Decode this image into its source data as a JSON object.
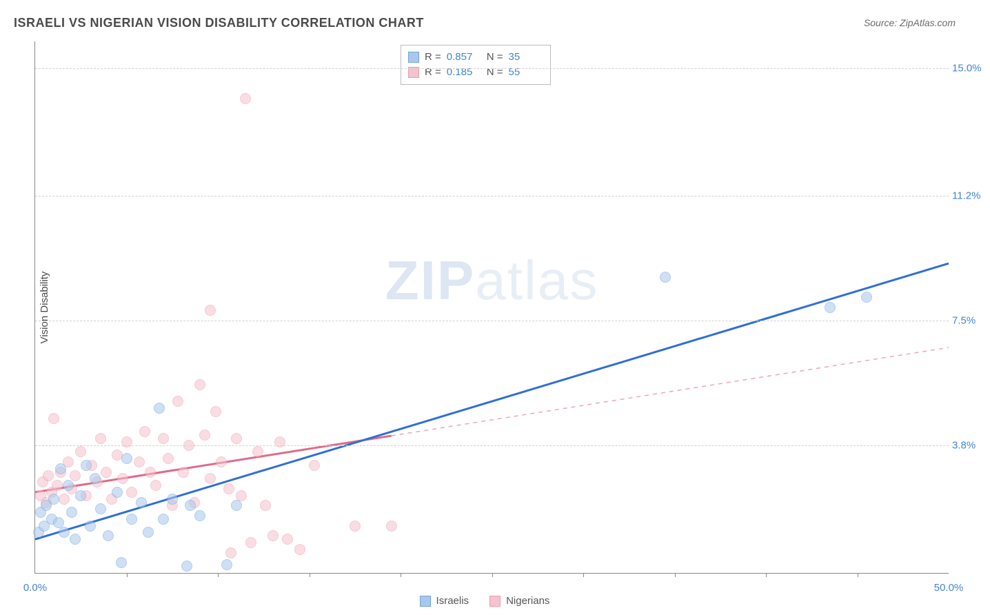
{
  "title": "ISRAELI VS NIGERIAN VISION DISABILITY CORRELATION CHART",
  "source": "Source: ZipAtlas.com",
  "ylabel": "Vision Disability",
  "watermark": {
    "bold": "ZIP",
    "rest": "atlas"
  },
  "axes": {
    "xlim": [
      0,
      50
    ],
    "ylim": [
      0,
      15.8
    ],
    "xlabels": [
      {
        "v": 0,
        "t": "0.0%"
      },
      {
        "v": 50,
        "t": "50.0%"
      }
    ],
    "xticks": [
      5,
      10,
      15,
      20,
      25,
      30,
      35,
      40,
      45
    ],
    "ygrid": [
      {
        "v": 3.8,
        "t": "3.8%"
      },
      {
        "v": 7.5,
        "t": "7.5%"
      },
      {
        "v": 11.2,
        "t": "11.2%"
      },
      {
        "v": 15.0,
        "t": "15.0%"
      }
    ]
  },
  "series": {
    "israelis": {
      "label": "Israelis",
      "fill": "#a9c8ec",
      "stroke": "#6fa5de",
      "marker_r": 8,
      "reg": {
        "r": "0.857",
        "n": "35",
        "line_color": "#2f6fd4",
        "width": 3,
        "x1": 0,
        "y1": 1.0,
        "x2": 50,
        "y2": 9.2,
        "solid_until": 50
      },
      "points": [
        [
          0.2,
          1.2
        ],
        [
          0.3,
          1.8
        ],
        [
          0.5,
          1.4
        ],
        [
          0.6,
          2.0
        ],
        [
          0.9,
          1.6
        ],
        [
          1.0,
          2.2
        ],
        [
          1.3,
          1.5
        ],
        [
          1.4,
          3.1
        ],
        [
          1.6,
          1.2
        ],
        [
          1.8,
          2.6
        ],
        [
          2.0,
          1.8
        ],
        [
          2.2,
          1.0
        ],
        [
          2.5,
          2.3
        ],
        [
          2.8,
          3.2
        ],
        [
          3.0,
          1.4
        ],
        [
          3.3,
          2.8
        ],
        [
          3.6,
          1.9
        ],
        [
          4.0,
          1.1
        ],
        [
          4.5,
          2.4
        ],
        [
          4.7,
          0.3
        ],
        [
          5.0,
          3.4
        ],
        [
          5.3,
          1.6
        ],
        [
          5.8,
          2.1
        ],
        [
          6.2,
          1.2
        ],
        [
          6.8,
          4.9
        ],
        [
          7.0,
          1.6
        ],
        [
          7.5,
          2.2
        ],
        [
          8.3,
          0.2
        ],
        [
          8.5,
          2.0
        ],
        [
          9.0,
          1.7
        ],
        [
          10.5,
          0.25
        ],
        [
          11.0,
          2.0
        ],
        [
          34.5,
          8.8
        ],
        [
          43.5,
          7.9
        ],
        [
          45.5,
          8.2
        ]
      ]
    },
    "nigerians": {
      "label": "Nigerians",
      "fill": "#f6c2cd",
      "stroke": "#ea9db0",
      "marker_r": 8,
      "reg": {
        "r": "0.185",
        "n": "55",
        "line_color": "#e06a88",
        "width": 3,
        "x1": 0,
        "y1": 2.4,
        "x2": 50,
        "y2": 6.7,
        "solid_until": 19.5
      },
      "points": [
        [
          0.3,
          2.3
        ],
        [
          0.4,
          2.7
        ],
        [
          0.6,
          2.1
        ],
        [
          0.7,
          2.9
        ],
        [
          0.9,
          2.4
        ],
        [
          1.0,
          4.6
        ],
        [
          1.2,
          2.6
        ],
        [
          1.4,
          3.0
        ],
        [
          1.6,
          2.2
        ],
        [
          1.8,
          3.3
        ],
        [
          2.0,
          2.5
        ],
        [
          2.2,
          2.9
        ],
        [
          2.5,
          3.6
        ],
        [
          2.8,
          2.3
        ],
        [
          3.1,
          3.2
        ],
        [
          3.4,
          2.7
        ],
        [
          3.6,
          4.0
        ],
        [
          3.9,
          3.0
        ],
        [
          4.2,
          2.2
        ],
        [
          4.5,
          3.5
        ],
        [
          4.8,
          2.8
        ],
        [
          5.0,
          3.9
        ],
        [
          5.3,
          2.4
        ],
        [
          5.7,
          3.3
        ],
        [
          6.0,
          4.2
        ],
        [
          6.3,
          3.0
        ],
        [
          6.6,
          2.6
        ],
        [
          7.0,
          4.0
        ],
        [
          7.3,
          3.4
        ],
        [
          7.5,
          2.0
        ],
        [
          7.8,
          5.1
        ],
        [
          8.1,
          3.0
        ],
        [
          8.4,
          3.8
        ],
        [
          8.7,
          2.1
        ],
        [
          9.0,
          5.6
        ],
        [
          9.3,
          4.1
        ],
        [
          9.6,
          2.8
        ],
        [
          9.6,
          7.8
        ],
        [
          9.9,
          4.8
        ],
        [
          10.2,
          3.3
        ],
        [
          10.6,
          2.5
        ],
        [
          10.7,
          0.6
        ],
        [
          11.0,
          4.0
        ],
        [
          11.3,
          2.3
        ],
        [
          11.5,
          14.1
        ],
        [
          11.8,
          0.9
        ],
        [
          12.2,
          3.6
        ],
        [
          12.6,
          2.0
        ],
        [
          13.0,
          1.1
        ],
        [
          13.4,
          3.9
        ],
        [
          13.8,
          1.0
        ],
        [
          14.5,
          0.7
        ],
        [
          15.3,
          3.2
        ],
        [
          17.5,
          1.4
        ],
        [
          19.5,
          1.4
        ]
      ]
    }
  },
  "legend_box": {
    "r_label": "R =",
    "n_label": "N ="
  },
  "background": "#ffffff",
  "grid_color": "#d0d0d0",
  "axis_color": "#888888",
  "tick_label_color": "#4285d4",
  "text_color": "#4a4a4a"
}
